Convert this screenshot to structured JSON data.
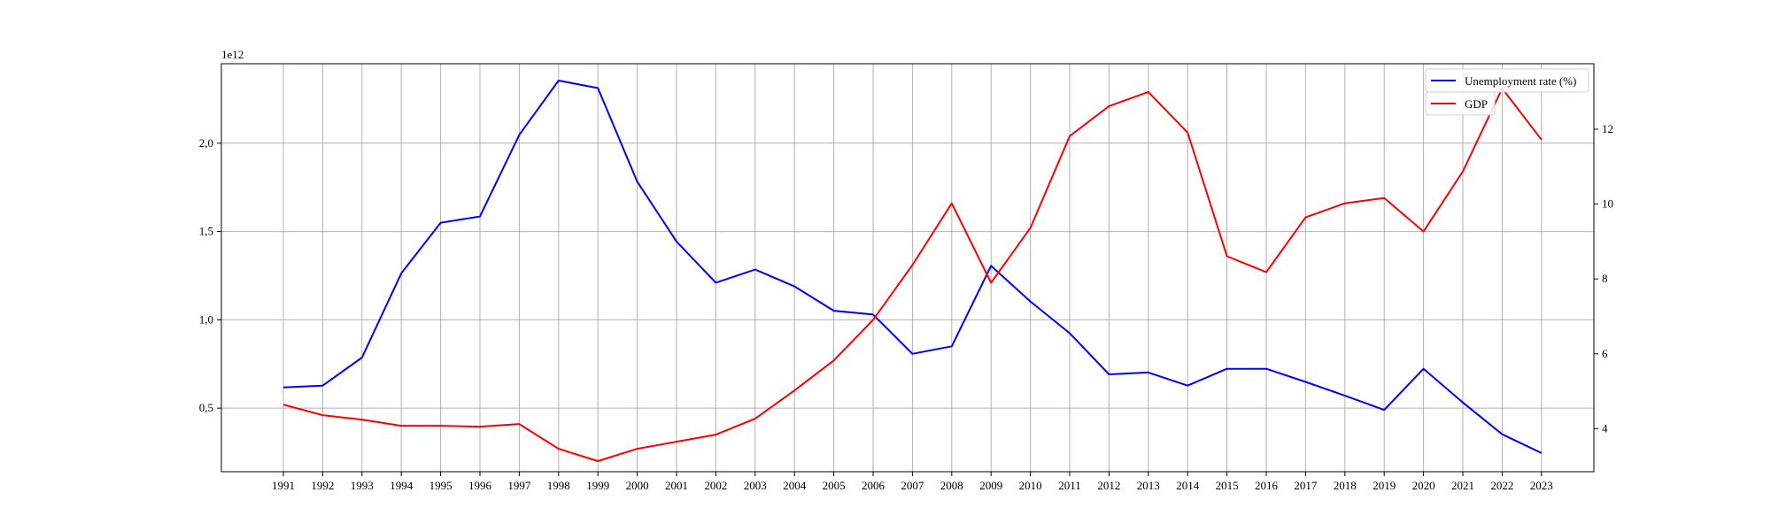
{
  "chart_data": {
    "type": "line",
    "title": "",
    "xlabel": "",
    "ylabel_left": "",
    "ylabel_right": "",
    "left_offset_label": "1e12",
    "x": [
      "1991",
      "1992",
      "1993",
      "1994",
      "1995",
      "1996",
      "1997",
      "1998",
      "1999",
      "2000",
      "2001",
      "2002",
      "2003",
      "2004",
      "2005",
      "2006",
      "2007",
      "2008",
      "2009",
      "2010",
      "2011",
      "2012",
      "2013",
      "2014",
      "2015",
      "2016",
      "2017",
      "2018",
      "2019",
      "2020",
      "2021",
      "2022",
      "2023"
    ],
    "left_axis": {
      "ylim": [
        0.14,
        2.45
      ],
      "ticks": [
        0.5,
        1.0,
        1.5,
        2.0
      ],
      "tick_labels": [
        "0,5",
        "1,0",
        "1,5",
        "2,0"
      ]
    },
    "right_axis": {
      "ylim": [
        2.85,
        13.75
      ],
      "ticks": [
        4,
        6,
        8,
        10,
        12
      ],
      "tick_labels": [
        "4",
        "6",
        "8",
        "10",
        "12"
      ]
    },
    "series": [
      {
        "name": "Unemployment rate (%)",
        "axis": "right",
        "color": "#0000ff",
        "values": [
          5.1,
          5.15,
          5.9,
          8.15,
          9.5,
          9.67,
          11.85,
          13.3,
          13.1,
          10.6,
          9.0,
          7.9,
          8.25,
          7.8,
          7.15,
          7.05,
          6.0,
          6.2,
          8.35,
          7.4,
          6.55,
          5.45,
          5.5,
          5.15,
          5.6,
          5.6,
          5.25,
          4.88,
          4.5,
          5.6,
          4.7,
          3.85,
          3.35
        ]
      },
      {
        "name": "GDP",
        "axis": "left",
        "color": "#ff0000",
        "values": [
          0.52,
          0.46,
          0.435,
          0.4,
          0.4,
          0.395,
          0.41,
          0.27,
          0.2,
          0.27,
          0.31,
          0.35,
          0.44,
          0.6,
          0.77,
          1.0,
          1.31,
          1.66,
          1.21,
          1.52,
          2.04,
          2.21,
          2.29,
          2.06,
          1.36,
          1.27,
          1.58,
          1.66,
          1.69,
          1.5,
          1.84,
          2.31,
          2.02
        ]
      }
    ],
    "grid": true,
    "legend_position": "top-right"
  }
}
